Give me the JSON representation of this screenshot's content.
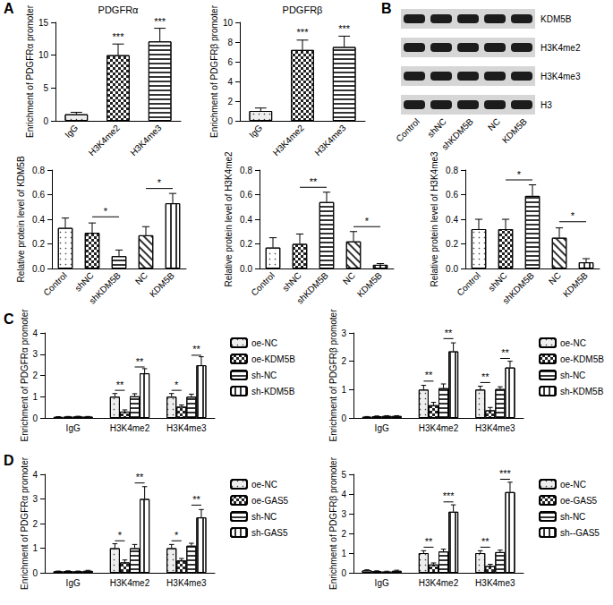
{
  "chart_data": [
    {
      "panel_label": "A",
      "type": "bar",
      "title": "PDGFRα",
      "y_label": "Enrichment of PDGFRα promoter",
      "categories": [
        "IgG",
        "H3K4me2",
        "H3K4me3"
      ],
      "values": [
        1.0,
        10.0,
        12.1
      ],
      "errors": [
        0.3,
        1.7,
        2.0
      ],
      "colors": [
        "#eeeeee",
        "#ffffff",
        "#ffffff"
      ],
      "ylim": [
        0,
        15
      ],
      "yticks": [
        0,
        5,
        10,
        15
      ],
      "grid": false,
      "significance": [
        {
          "at": "H3K4me2",
          "y": 11.9,
          "label": "***"
        },
        {
          "at": "H3K4me3",
          "y": 14.3,
          "label": "***"
        }
      ]
    },
    {
      "type": "bar",
      "title": "PDGFRβ",
      "y_label": "Enrichment of PDGFRβ promoter",
      "categories": [
        "IgG",
        "H3K4me2",
        "H3K4me3"
      ],
      "values": [
        1.0,
        7.2,
        7.5
      ],
      "errors": [
        0.3,
        1.0,
        1.1
      ],
      "colors": [
        "#eeeeee",
        "#ffffff",
        "#ffffff"
      ],
      "ylim": [
        0,
        10
      ],
      "yticks": [
        0,
        2,
        4,
        6,
        8,
        10
      ],
      "grid": false,
      "significance": [
        {
          "at": "H3K4me2",
          "y": 8.4,
          "label": "***"
        },
        {
          "at": "H3K4me3",
          "y": 8.8,
          "label": "***"
        }
      ]
    },
    {
      "type": "bar",
      "y_label": "Relative protein level of KDM5B",
      "categories": [
        "Control",
        "shNC",
        "shKDM5B",
        "NC",
        "KDM5B"
      ],
      "values": [
        0.33,
        0.29,
        0.1,
        0.27,
        0.53
      ],
      "errors": [
        0.08,
        0.08,
        0.05,
        0.07,
        0.08
      ],
      "colors": [
        "#ffffff",
        "#ffffff",
        "#ffffff",
        "#ffffff",
        "#ffffff"
      ],
      "ylim": [
        0,
        0.8
      ],
      "yticks": [
        {
          "value": 0,
          "label": "0.0"
        },
        0.2,
        0.4,
        0.6,
        0.8
      ],
      "grid": false,
      "significance": [
        {
          "from": "shNC",
          "to": "shKDM5B",
          "y": 0.42,
          "label": "*"
        },
        {
          "from": "NC",
          "to": "KDM5B",
          "y": 0.65,
          "label": "*"
        }
      ]
    },
    {
      "type": "bar",
      "y_label": "Relative protein level of H3K4me2",
      "categories": [
        "Control",
        "shNC",
        "shKDM5B",
        "NC",
        "KDM5B"
      ],
      "values": [
        0.17,
        0.2,
        0.54,
        0.22,
        0.03
      ],
      "errors": [
        0.08,
        0.08,
        0.08,
        0.08,
        0.01
      ],
      "colors": [
        "#ffffff",
        "#ffffff",
        "#ffffff",
        "#ffffff",
        "#ffffff"
      ],
      "ylim": [
        0,
        0.8
      ],
      "yticks": [
        {
          "value": 0,
          "label": "0.0"
        },
        0.2,
        0.4,
        0.6,
        0.8
      ],
      "grid": false,
      "significance": [
        {
          "from": "shNC",
          "to": "shKDM5B",
          "y": 0.66,
          "label": "**"
        },
        {
          "from": "NC",
          "to": "KDM5B",
          "y": 0.34,
          "label": "*"
        }
      ]
    },
    {
      "type": "bar",
      "y_label": "Relative protein level of H3K4me3",
      "categories": [
        "Control",
        "shNC",
        "shKDM5B",
        "NC",
        "KDM5B"
      ],
      "values": [
        0.32,
        0.32,
        0.59,
        0.25,
        0.05
      ],
      "errors": [
        0.08,
        0.08,
        0.09,
        0.08,
        0.03
      ],
      "colors": [
        "#ffffff",
        "#ffffff",
        "#ffffff",
        "#ffffff",
        "#ffffff"
      ],
      "ylim": [
        0,
        0.8
      ],
      "yticks": [
        {
          "value": 0,
          "label": "0.0"
        },
        0.2,
        0.4,
        0.6,
        0.8
      ],
      "grid": false,
      "significance": [
        {
          "from": "shNC",
          "to": "shKDM5B",
          "y": 0.72,
          "label": "*"
        },
        {
          "from": "NC",
          "to": "KDM5B",
          "y": 0.38,
          "label": "*"
        }
      ]
    },
    {
      "panel_label": "C",
      "type": "bar",
      "y_label": "Enrichment of PDGFRα promoter",
      "categories": [
        "IgG",
        "H3K4me2",
        "H3K4me3"
      ],
      "legend": "right",
      "grid": false,
      "series": [
        {
          "name": "oe-NC",
          "color": "#eeeeee",
          "values": [
            0.05,
            1.0,
            1.0
          ],
          "errors": [
            0.01,
            0.15,
            0.15
          ]
        },
        {
          "name": "oe-KDM5B",
          "color": "#ffffff",
          "values": [
            0.06,
            0.3,
            0.53
          ],
          "errors": [
            0.01,
            0.08,
            0.08
          ]
        },
        {
          "name": "sh-NC",
          "color": "#ffffff",
          "values": [
            0.07,
            1.02,
            1.0
          ],
          "errors": [
            0.01,
            0.12,
            0.12
          ]
        },
        {
          "name": "sh-KDM5B",
          "color": "#ffffff",
          "values": [
            0.06,
            2.1,
            2.48
          ],
          "errors": [
            0.01,
            0.22,
            0.4
          ]
        }
      ],
      "ylim": [
        0,
        4
      ],
      "yticks": [
        0,
        1,
        2,
        3,
        4
      ],
      "significance": [
        {
          "category": "H3K4me2",
          "from": "oe-NC",
          "to": "oe-KDM5B",
          "y": 1.3,
          "label": "**"
        },
        {
          "category": "H3K4me2",
          "from": "sh-NC",
          "to": "sh-KDM5B",
          "y": 2.4,
          "label": "**"
        },
        {
          "category": "H3K4me3",
          "from": "oe-NC",
          "to": "oe-KDM5B",
          "y": 1.3,
          "label": "*"
        },
        {
          "category": "H3K4me3",
          "from": "sh-NC",
          "to": "sh-KDM5B",
          "y": 2.95,
          "label": "**"
        }
      ]
    },
    {
      "type": "bar",
      "y_label": "Enrichment of PDGFRβ promoter",
      "categories": [
        "IgG",
        "H3K4me2",
        "H3K4me3"
      ],
      "legend": "right",
      "grid": false,
      "series": [
        {
          "name": "oe-NC",
          "color": "#eeeeee",
          "values": [
            0.04,
            1.0,
            1.0
          ],
          "errors": [
            0.01,
            0.15,
            0.12
          ]
        },
        {
          "name": "oe-KDM5B",
          "color": "#ffffff",
          "values": [
            0.06,
            0.45,
            0.27
          ],
          "errors": [
            0.01,
            0.1,
            0.1
          ]
        },
        {
          "name": "sh-NC",
          "color": "#ffffff",
          "values": [
            0.07,
            1.05,
            1.02
          ],
          "errors": [
            0.01,
            0.15,
            0.08
          ]
        },
        {
          "name": "sh-KDM5B",
          "color": "#ffffff",
          "values": [
            0.07,
            2.35,
            1.78
          ],
          "errors": [
            0.01,
            0.3,
            0.22
          ]
        }
      ],
      "ylim": [
        0,
        3
      ],
      "yticks": [
        0,
        1,
        2,
        3
      ],
      "significance": [
        {
          "category": "H3K4me2",
          "from": "oe-NC",
          "to": "oe-KDM5B",
          "y": 1.3,
          "label": "**"
        },
        {
          "category": "H3K4me2",
          "from": "sh-NC",
          "to": "sh-KDM5B",
          "y": 2.8,
          "label": "**"
        },
        {
          "category": "H3K4me3",
          "from": "oe-NC",
          "to": "oe-KDM5B",
          "y": 1.25,
          "label": "**"
        },
        {
          "category": "H3K4me3",
          "from": "sh-NC",
          "to": "sh-KDM5B",
          "y": 2.1,
          "label": "**"
        }
      ]
    },
    {
      "panel_label": "D",
      "type": "bar",
      "y_label": "Enrichment of PDGFRα promoter",
      "categories": [
        "IgG",
        "H3K4me2",
        "H3K4me3"
      ],
      "legend": "right",
      "grid": false,
      "series": [
        {
          "name": "oe-NC",
          "color": "#eeeeee",
          "values": [
            0.06,
            1.0,
            1.0
          ],
          "errors": [
            0.01,
            0.18,
            0.15
          ]
        },
        {
          "name": "oe-GAS5",
          "color": "#ffffff",
          "values": [
            0.07,
            0.42,
            0.5
          ],
          "errors": [
            0.01,
            0.1,
            0.08
          ]
        },
        {
          "name": "sh-NC",
          "color": "#ffffff",
          "values": [
            0.06,
            1.0,
            1.1
          ],
          "errors": [
            0.01,
            0.15,
            0.1
          ]
        },
        {
          "name": "sh-GAS5",
          "color": "#ffffff",
          "values": [
            0.08,
            3.0,
            2.25
          ],
          "errors": [
            0.02,
            0.5,
            0.32
          ]
        }
      ],
      "ylim": [
        0,
        4
      ],
      "yticks": [
        0,
        1,
        2,
        3,
        4
      ],
      "significance": [
        {
          "category": "H3K4me2",
          "from": "oe-NC",
          "to": "oe-GAS5",
          "y": 1.3,
          "label": "*"
        },
        {
          "category": "H3K4me2",
          "from": "sh-NC",
          "to": "sh-GAS5",
          "y": 3.65,
          "label": "**"
        },
        {
          "category": "H3K4me3",
          "from": "oe-NC",
          "to": "oe-GAS5",
          "y": 1.3,
          "label": "*"
        },
        {
          "category": "H3K4me3",
          "from": "sh-NC",
          "to": "sh-GAS5",
          "y": 2.75,
          "label": "**"
        }
      ]
    },
    {
      "type": "bar",
      "y_label": "Enrichment of PDGFRβ promoter",
      "categories": [
        "IgG",
        "H3K4me2",
        "H3K4me3"
      ],
      "legend": "right",
      "grid": false,
      "series": [
        {
          "name": "oe-NC",
          "color": "#eeeeee",
          "values": [
            0.12,
            1.0,
            1.0
          ],
          "errors": [
            0.03,
            0.12,
            0.12
          ]
        },
        {
          "name": "oe-GAS5",
          "color": "#ffffff",
          "values": [
            0.08,
            0.42,
            0.35
          ],
          "errors": [
            0.02,
            0.08,
            0.08
          ]
        },
        {
          "name": "sh-NC",
          "color": "#ffffff",
          "values": [
            0.06,
            1.08,
            1.05
          ],
          "errors": [
            0.02,
            0.12,
            0.1
          ]
        },
        {
          "name": "sh--GAS5",
          "color": "#ffffff",
          "values": [
            0.1,
            3.1,
            4.1
          ],
          "errors": [
            0.03,
            0.35,
            0.5
          ]
        }
      ],
      "ylim": [
        0,
        5
      ],
      "yticks": [
        0,
        1,
        2,
        3,
        4,
        5
      ],
      "significance": [
        {
          "category": "H3K4me2",
          "from": "oe-NC",
          "to": "oe-GAS5",
          "y": 1.3,
          "label": "**"
        },
        {
          "category": "H3K4me2",
          "from": "sh-NC",
          "to": "sh--GAS5",
          "y": 3.6,
          "label": "***"
        },
        {
          "category": "H3K4me3",
          "from": "oe-NC",
          "to": "oe-GAS5",
          "y": 1.3,
          "label": "**"
        },
        {
          "category": "H3K4me3",
          "from": "sh-NC",
          "to": "sh--GAS5",
          "y": 4.75,
          "label": "***"
        }
      ]
    }
  ],
  "blot": {
    "panel_label": "B",
    "rows": [
      "KDM5B",
      "H3K4me2",
      "H3K4me3",
      "H3"
    ],
    "lanes": [
      "Control",
      "shNC",
      "shKDM5B",
      "NC",
      "KDM5B"
    ]
  }
}
